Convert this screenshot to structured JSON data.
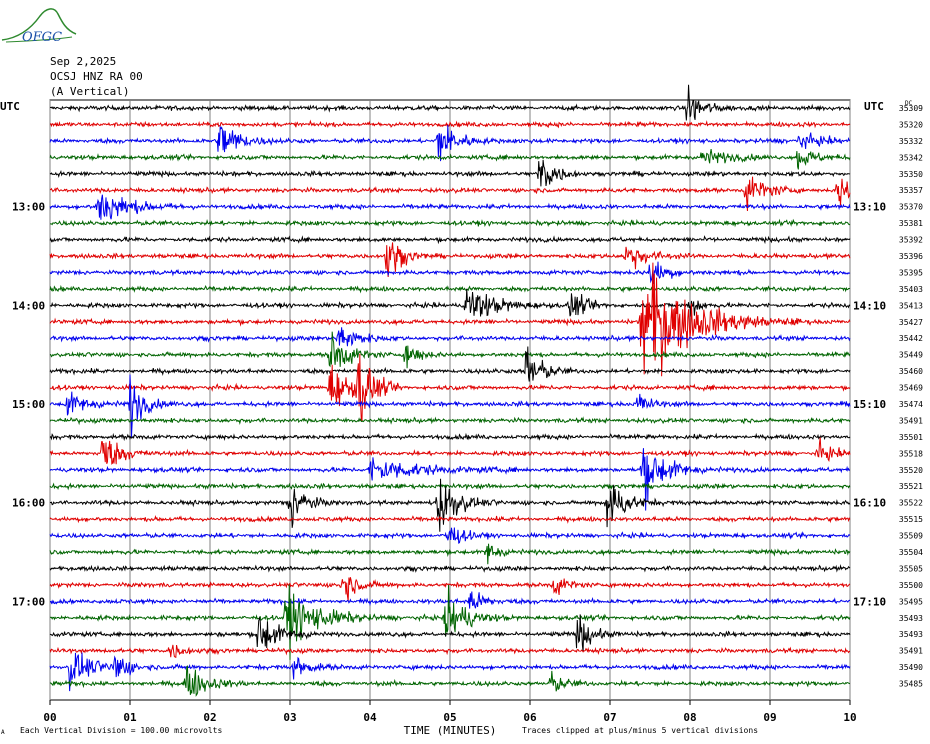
{
  "header": {
    "logo_text": "OFGC",
    "date": "Sep 2,2025",
    "station": "OCSJ HNZ RA 00",
    "component": "(A Vertical)"
  },
  "colors": {
    "black": "#000000",
    "red": "#e00000",
    "blue": "#0000ee",
    "green": "#006400",
    "grid": "#808080"
  },
  "chart_data": {
    "type": "line",
    "title": "",
    "left_axis_label": "UTC",
    "right_axis_label": "UTC",
    "right_corner_label": "DC",
    "xlabel": "TIME (MINUTES)",
    "x_ticks": [
      "00",
      "01",
      "02",
      "03",
      "04",
      "05",
      "06",
      "07",
      "08",
      "09",
      "10"
    ],
    "xlim": [
      0,
      10
    ],
    "left_time_labels": [
      {
        "row": 6,
        "text": "13:00"
      },
      {
        "row": 12,
        "text": "14:00"
      },
      {
        "row": 18,
        "text": "15:00"
      },
      {
        "row": 24,
        "text": "16:00"
      },
      {
        "row": 30,
        "text": "17:00"
      }
    ],
    "right_time_labels": [
      {
        "row": 6,
        "text": "13:10"
      },
      {
        "row": 12,
        "text": "14:10"
      },
      {
        "row": 18,
        "text": "15:10"
      },
      {
        "row": 24,
        "text": "16:10"
      },
      {
        "row": 30,
        "text": "17:10"
      }
    ],
    "trace_color_cycle": [
      "black",
      "red",
      "blue",
      "green"
    ],
    "dc_offsets": [
      35309,
      35320,
      35332,
      35342,
      35350,
      35357,
      35370,
      35381,
      35392,
      35396,
      35395,
      35403,
      35413,
      35427,
      35442,
      35449,
      35460,
      35469,
      35474,
      35491,
      35501,
      35518,
      35520,
      35521,
      35522,
      35515,
      35509,
      35504,
      35505,
      35500,
      35495,
      35493,
      35493,
      35491,
      35490,
      35485
    ],
    "events": [
      {
        "row": 0,
        "t": 7.97,
        "amp": 0.9,
        "dur": 0.15
      },
      {
        "row": 2,
        "t": 2.12,
        "amp": 0.9,
        "dur": 0.2
      },
      {
        "row": 2,
        "t": 4.85,
        "amp": 0.9,
        "dur": 0.2
      },
      {
        "row": 2,
        "t": 9.35,
        "amp": 0.3,
        "dur": 0.25
      },
      {
        "row": 3,
        "t": 8.15,
        "amp": 0.35,
        "dur": 0.25
      },
      {
        "row": 3,
        "t": 9.35,
        "amp": 0.5,
        "dur": 0.15
      },
      {
        "row": 4,
        "t": 6.12,
        "amp": 1.0,
        "dur": 0.15
      },
      {
        "row": 5,
        "t": 8.7,
        "amp": 0.7,
        "dur": 0.2
      },
      {
        "row": 5,
        "t": 9.85,
        "amp": 0.7,
        "dur": 0.2
      },
      {
        "row": 6,
        "t": 0.6,
        "amp": 0.8,
        "dur": 0.3
      },
      {
        "row": 9,
        "t": 4.2,
        "amp": 1.0,
        "dur": 0.15
      },
      {
        "row": 9,
        "t": 7.2,
        "amp": 0.6,
        "dur": 0.2
      },
      {
        "row": 10,
        "t": 7.5,
        "amp": 0.5,
        "dur": 0.2
      },
      {
        "row": 12,
        "t": 5.2,
        "amp": 0.8,
        "dur": 0.3
      },
      {
        "row": 12,
        "t": 6.5,
        "amp": 0.6,
        "dur": 0.15
      },
      {
        "row": 12,
        "t": 8.0,
        "amp": 0.5,
        "dur": 0.12
      },
      {
        "row": 13,
        "t": 7.4,
        "amp": 2.5,
        "dur": 0.5
      },
      {
        "row": 14,
        "t": 3.6,
        "amp": 0.6,
        "dur": 0.2
      },
      {
        "row": 15,
        "t": 3.5,
        "amp": 0.9,
        "dur": 0.2
      },
      {
        "row": 15,
        "t": 4.45,
        "amp": 0.6,
        "dur": 0.12
      },
      {
        "row": 16,
        "t": 5.95,
        "amp": 1.2,
        "dur": 0.15
      },
      {
        "row": 17,
        "t": 3.5,
        "amp": 1.0,
        "dur": 0.2
      },
      {
        "row": 17,
        "t": 3.85,
        "amp": 1.5,
        "dur": 0.15
      },
      {
        "row": 18,
        "t": 0.2,
        "amp": 0.5,
        "dur": 0.2
      },
      {
        "row": 18,
        "t": 1.0,
        "amp": 1.1,
        "dur": 0.15
      },
      {
        "row": 18,
        "t": 7.35,
        "amp": 0.5,
        "dur": 0.12
      },
      {
        "row": 21,
        "t": 0.65,
        "amp": 0.8,
        "dur": 0.2
      },
      {
        "row": 21,
        "t": 9.6,
        "amp": 0.4,
        "dur": 0.15
      },
      {
        "row": 22,
        "t": 4.0,
        "amp": 0.5,
        "dur": 0.5
      },
      {
        "row": 22,
        "t": 7.4,
        "amp": 1.2,
        "dur": 0.25
      },
      {
        "row": 24,
        "t": 3.0,
        "amp": 1.1,
        "dur": 0.15
      },
      {
        "row": 24,
        "t": 4.85,
        "amp": 1.2,
        "dur": 0.2
      },
      {
        "row": 24,
        "t": 6.95,
        "amp": 1.1,
        "dur": 0.2
      },
      {
        "row": 26,
        "t": 4.95,
        "amp": 0.6,
        "dur": 0.15
      },
      {
        "row": 27,
        "t": 5.45,
        "amp": 0.5,
        "dur": 0.12
      },
      {
        "row": 29,
        "t": 3.65,
        "amp": 0.7,
        "dur": 0.15
      },
      {
        "row": 29,
        "t": 6.3,
        "amp": 0.4,
        "dur": 0.15
      },
      {
        "row": 30,
        "t": 5.25,
        "amp": 0.5,
        "dur": 0.15
      },
      {
        "row": 31,
        "t": 2.95,
        "amp": 1.1,
        "dur": 0.35
      },
      {
        "row": 31,
        "t": 4.95,
        "amp": 1.2,
        "dur": 0.2
      },
      {
        "row": 32,
        "t": 2.6,
        "amp": 1.0,
        "dur": 0.2
      },
      {
        "row": 32,
        "t": 6.6,
        "amp": 0.8,
        "dur": 0.15
      },
      {
        "row": 33,
        "t": 1.5,
        "amp": 0.4,
        "dur": 0.12
      },
      {
        "row": 34,
        "t": 0.25,
        "amp": 0.8,
        "dur": 0.2
      },
      {
        "row": 34,
        "t": 0.8,
        "amp": 0.7,
        "dur": 0.15
      },
      {
        "row": 34,
        "t": 3.05,
        "amp": 0.5,
        "dur": 0.15
      },
      {
        "row": 35,
        "t": 1.7,
        "amp": 0.8,
        "dur": 0.2
      },
      {
        "row": 35,
        "t": 6.25,
        "amp": 0.4,
        "dur": 0.15
      }
    ]
  },
  "footer": {
    "scale_note": "Each Vertical Division =  100.00 microvolts",
    "clip_note": "Traces clipped at plus/minus 5 vertical divisions",
    "corner_mark": "A"
  }
}
